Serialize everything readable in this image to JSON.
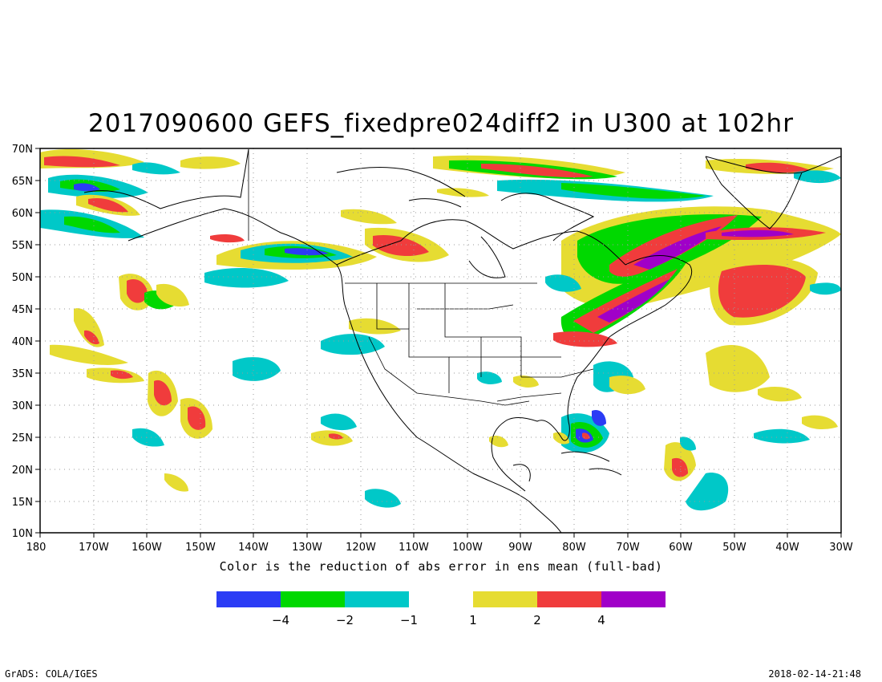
{
  "title": "2017090600 GEFS_fixedpre024diff2 in U300 at 102hr",
  "caption": "Color is the reduction of abs error in ens mean (full-bad)",
  "footer": {
    "left": "GrADS: COLA/IGES",
    "right": "2018-02-14-21:48"
  },
  "map": {
    "lon_range": [
      -180,
      -30
    ],
    "lat_range": [
      10,
      70
    ],
    "lat_ticks": [
      "70N",
      "65N",
      "60N",
      "55N",
      "50N",
      "45N",
      "40N",
      "35N",
      "30N",
      "25N",
      "20N",
      "15N",
      "10N"
    ],
    "lon_ticks": [
      "180",
      "170W",
      "160W",
      "150W",
      "140W",
      "130W",
      "120W",
      "110W",
      "100W",
      "90W",
      "80W",
      "70W",
      "60W",
      "50W",
      "40W",
      "30W"
    ],
    "grid": "dotted"
  },
  "legend": {
    "colors": [
      "#2b3cf5",
      "#00d800",
      "#00c8c8",
      "#e6dc32",
      "#f03c3c",
      "#a000c8"
    ],
    "labels": [
      "−4",
      "−2",
      "−1",
      "1",
      "2",
      "4"
    ]
  }
}
